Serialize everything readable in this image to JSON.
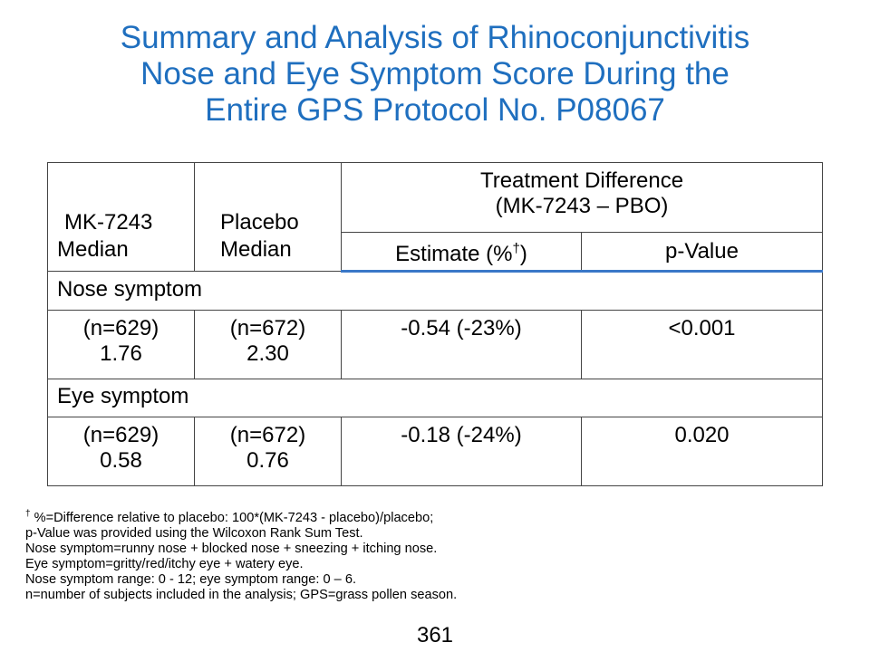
{
  "title": {
    "line1": "Summary and Analysis of Rhinoconjunctivitis",
    "line2": "Nose and Eye Symptom Score During the",
    "line3": "Entire GPS Protocol No. P08067"
  },
  "table": {
    "header": {
      "mk_line1": "MK-7243",
      "mk_line2": "Median",
      "placebo_line1": "Placebo",
      "placebo_line2": "Median",
      "treatment_line1": "Treatment Difference",
      "treatment_line2": "(MK-7243 – PBO)",
      "estimate": "Estimate (%",
      "estimate_sup": "†",
      "estimate_close": ")",
      "pvalue": "p-Value"
    },
    "sections": [
      {
        "label": "Nose symptom",
        "mk_n": "(n=629)",
        "mk_val": "1.76",
        "pbo_n": "(n=672)",
        "pbo_val": "2.30",
        "estimate": "-0.54 (-23%)",
        "pvalue": "<0.001"
      },
      {
        "label": "Eye symptom",
        "mk_n": "(n=629)",
        "mk_val": "0.58",
        "pbo_n": "(n=672)",
        "pbo_val": "0.76",
        "estimate": "-0.18 (-24%)",
        "pvalue": "0.020"
      }
    ]
  },
  "footnotes": {
    "dagger": "†",
    "line1": " %=Difference relative to placebo: 100*(MK-7243 - placebo)/placebo;",
    "line2": "p-Value was provided using the Wilcoxon Rank Sum Test.",
    "line3": "Nose symptom=runny nose + blocked nose + sneezing + itching nose.",
    "line4": "Eye symptom=gritty/red/itchy eye + watery eye.",
    "line5": "Nose symptom range: 0 - 12;  eye symptom range: 0 – 6.",
    "line6": "n=number of subjects included in the analysis; GPS=grass pollen season."
  },
  "page_number": "361",
  "colors": {
    "title": "#1f6fbf",
    "header_rule": "#3a78c8"
  }
}
